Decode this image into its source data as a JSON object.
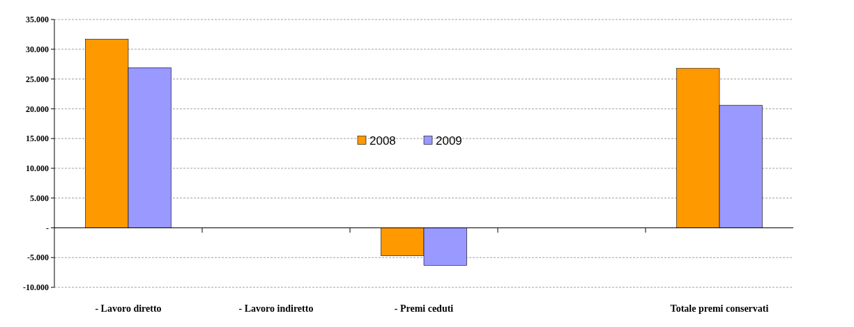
{
  "chart_data": {
    "type": "bar",
    "categories": [
      "- Lavoro diretto",
      "- Lavoro indiretto",
      "- Premi ceduti",
      null,
      "Totale premi conservati"
    ],
    "series": [
      {
        "name": "2008",
        "color": "#ff9900",
        "values": [
          31700,
          null,
          -4700,
          null,
          26800
        ]
      },
      {
        "name": "2009",
        "color": "#9999ff",
        "values": [
          26900,
          null,
          -6300,
          null,
          20600
        ]
      }
    ],
    "ylim": [
      -10000,
      35000
    ],
    "yticks": [
      {
        "value": -10000,
        "label": "-10.000"
      },
      {
        "value": -5000,
        "label": "-5.000"
      },
      {
        "value": 0,
        "label": "-"
      },
      {
        "value": 5000,
        "label": "5.000"
      },
      {
        "value": 10000,
        "label": "10.000"
      },
      {
        "value": 15000,
        "label": "15.000"
      },
      {
        "value": 20000,
        "label": "20.000"
      },
      {
        "value": 25000,
        "label": "25.000"
      },
      {
        "value": 30000,
        "label": "30.000"
      },
      {
        "value": 35000,
        "label": "35.000"
      }
    ],
    "grid": "y",
    "legend": "center"
  }
}
